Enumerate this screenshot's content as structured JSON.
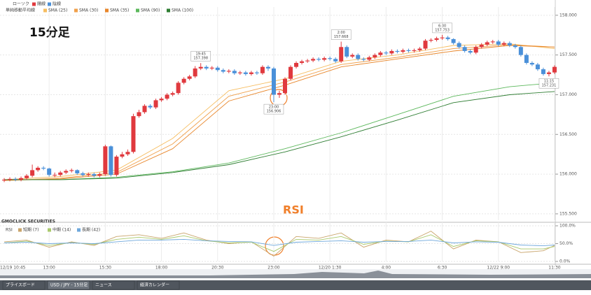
{
  "chart_data": [
    {
      "type": "candlestick",
      "title": "15分足",
      "annotation": "RSI",
      "brand": "GMOCLICK SECURITIES",
      "candle_name": "ローソク",
      "up_name": "陽線",
      "down_name": "陰線",
      "up_color": "#e0393e",
      "down_color": "#4a90d9",
      "overlay_title": "単純移動平均線",
      "open": [
        155.92,
        155.93,
        155.94,
        155.93,
        155.95,
        155.98,
        156.05,
        156.08,
        156.07,
        155.99,
        155.99,
        156.02,
        156.04,
        156.05,
        156.01,
        155.99,
        156.0,
        155.98,
        156.0,
        156.35,
        155.99,
        156.22,
        156.25,
        156.28,
        156.73,
        156.78,
        156.86,
        156.84,
        156.93,
        156.95,
        157.0,
        157.02,
        157.15,
        157.2,
        157.23,
        157.33,
        157.35,
        157.33,
        157.34,
        157.31,
        157.29,
        157.3,
        157.27,
        157.28,
        157.26,
        157.28,
        157.27,
        157.35,
        157.33,
        157.0,
        157.02,
        157.2,
        157.35,
        157.4,
        157.42,
        157.43,
        157.45,
        157.44,
        157.46,
        157.45,
        157.42,
        157.6,
        157.48,
        157.5,
        157.45,
        157.44,
        157.47,
        157.5,
        157.53,
        157.52,
        157.55,
        157.54,
        157.56,
        157.55,
        157.56,
        157.58,
        157.68,
        157.69,
        157.71,
        157.72,
        157.7,
        157.65,
        157.6,
        157.55,
        157.53,
        157.6,
        157.63,
        157.66,
        157.67,
        157.63,
        157.65,
        157.62,
        157.6,
        157.5,
        157.4,
        157.38,
        157.32,
        157.26,
        157.28
      ],
      "high": [
        155.95,
        155.96,
        155.96,
        155.97,
        156.0,
        156.12,
        156.1,
        156.1,
        156.08,
        156.02,
        156.04,
        156.06,
        156.07,
        156.06,
        156.03,
        156.02,
        156.02,
        156.02,
        156.37,
        156.36,
        156.24,
        156.28,
        156.31,
        156.76,
        156.81,
        156.88,
        156.88,
        156.95,
        156.97,
        157.02,
        157.04,
        157.17,
        157.22,
        157.25,
        157.36,
        157.398,
        157.37,
        157.36,
        157.36,
        157.33,
        157.32,
        157.32,
        157.3,
        157.3,
        157.3,
        157.3,
        157.37,
        157.37,
        157.35,
        157.05,
        157.22,
        157.37,
        157.42,
        157.44,
        157.45,
        157.47,
        157.47,
        157.48,
        157.48,
        157.47,
        157.668,
        157.62,
        157.52,
        157.52,
        157.47,
        157.49,
        157.52,
        157.55,
        157.55,
        157.57,
        157.57,
        157.58,
        157.58,
        157.58,
        157.6,
        157.7,
        157.71,
        157.73,
        157.753,
        157.74,
        157.71,
        157.67,
        157.62,
        157.57,
        157.62,
        157.65,
        157.68,
        157.69,
        157.69,
        157.67,
        157.67,
        157.64,
        157.62,
        157.52,
        157.42,
        157.4,
        157.34,
        157.3,
        157.37
      ],
      "low": [
        155.9,
        155.91,
        155.91,
        155.91,
        155.93,
        155.96,
        156.03,
        156.05,
        155.97,
        155.96,
        155.97,
        156.0,
        156.02,
        155.99,
        155.97,
        155.97,
        155.96,
        155.96,
        155.98,
        155.97,
        155.97,
        156.2,
        156.23,
        156.26,
        156.71,
        156.76,
        156.82,
        156.82,
        156.91,
        156.93,
        156.98,
        157.0,
        157.13,
        157.18,
        157.21,
        157.31,
        157.31,
        157.31,
        157.29,
        157.27,
        157.27,
        157.25,
        157.25,
        157.24,
        157.24,
        157.25,
        157.25,
        157.3,
        156.906,
        156.96,
        157.0,
        157.18,
        157.33,
        157.38,
        157.4,
        157.41,
        157.42,
        157.42,
        157.43,
        157.4,
        157.4,
        157.46,
        157.46,
        157.43,
        157.42,
        157.42,
        157.45,
        157.48,
        157.5,
        157.5,
        157.52,
        157.52,
        157.53,
        157.53,
        157.54,
        157.56,
        157.66,
        157.67,
        157.69,
        157.68,
        157.63,
        157.58,
        157.53,
        157.51,
        157.51,
        157.58,
        157.61,
        157.64,
        157.61,
        157.61,
        157.6,
        157.58,
        157.48,
        157.38,
        157.36,
        157.3,
        157.24,
        157.231,
        157.26
      ],
      "close": [
        155.93,
        155.94,
        155.93,
        155.95,
        155.98,
        156.05,
        156.08,
        156.07,
        155.99,
        155.99,
        156.02,
        156.04,
        156.05,
        156.01,
        155.99,
        156.0,
        155.98,
        156.0,
        156.35,
        155.99,
        156.22,
        156.25,
        156.28,
        156.73,
        156.78,
        156.86,
        156.84,
        156.93,
        156.95,
        157.0,
        157.02,
        157.15,
        157.2,
        157.23,
        157.33,
        157.35,
        157.33,
        157.34,
        157.31,
        157.29,
        157.3,
        157.27,
        157.28,
        157.26,
        157.28,
        157.27,
        157.35,
        157.33,
        157.0,
        157.02,
        157.2,
        157.35,
        157.4,
        157.42,
        157.43,
        157.45,
        157.44,
        157.46,
        157.45,
        157.42,
        157.6,
        157.48,
        157.5,
        157.45,
        157.44,
        157.47,
        157.5,
        157.53,
        157.52,
        157.55,
        157.54,
        157.56,
        157.55,
        157.56,
        157.58,
        157.68,
        157.69,
        157.71,
        157.72,
        157.7,
        157.65,
        157.6,
        157.55,
        157.53,
        157.6,
        157.63,
        157.66,
        157.67,
        157.63,
        157.65,
        157.62,
        157.6,
        157.5,
        157.4,
        157.38,
        157.32,
        157.26,
        157.28,
        157.35
      ],
      "series": [
        {
          "name": "SMA (25)",
          "color": "#f6bd60",
          "x": [
            0,
            10,
            20,
            30,
            40,
            50,
            60,
            70,
            80,
            90,
            98
          ],
          "values": [
            155.93,
            155.97,
            156.05,
            156.45,
            157.05,
            157.2,
            157.42,
            157.5,
            157.62,
            157.64,
            157.58
          ]
        },
        {
          "name": "SMA (30)",
          "color": "#f0a04b",
          "x": [
            0,
            10,
            20,
            30,
            40,
            50,
            60,
            70,
            80,
            90,
            98
          ],
          "values": [
            155.92,
            155.95,
            156.02,
            156.38,
            156.98,
            157.16,
            157.38,
            157.47,
            157.58,
            157.63,
            157.6
          ]
        },
        {
          "name": "SMA (35)",
          "color": "#e8862a",
          "x": [
            0,
            10,
            20,
            30,
            40,
            50,
            60,
            70,
            80,
            90,
            98
          ],
          "values": [
            155.92,
            155.94,
            156.0,
            156.32,
            156.92,
            157.12,
            157.35,
            157.45,
            157.55,
            157.62,
            157.6
          ]
        },
        {
          "name": "SMA (90)",
          "color": "#5cb85c",
          "x": [
            0,
            10,
            20,
            30,
            40,
            50,
            60,
            70,
            80,
            90,
            98
          ],
          "values": [
            155.93,
            155.93,
            155.96,
            156.03,
            156.14,
            156.32,
            156.52,
            156.75,
            156.98,
            157.1,
            157.15
          ]
        },
        {
          "name": "SMA (100)",
          "color": "#2e7d32",
          "x": [
            0,
            10,
            20,
            30,
            40,
            50,
            60,
            70,
            80,
            90,
            98
          ],
          "values": [
            155.93,
            155.93,
            155.95,
            156.02,
            156.12,
            156.28,
            156.47,
            156.68,
            156.9,
            157.0,
            157.04
          ]
        }
      ],
      "annotations": [
        {
          "x": 35,
          "time": "19:45",
          "value": 157.398,
          "label": "157.398",
          "side": "above"
        },
        {
          "x": 48,
          "time": "23:00",
          "value": 156.906,
          "label": "156.906",
          "side": "below"
        },
        {
          "x": 60,
          "time": "2:00",
          "value": 157.668,
          "label": "157.668",
          "side": "above"
        },
        {
          "x": 78,
          "time": "6:30",
          "value": 157.753,
          "label": "157.753",
          "side": "above"
        },
        {
          "x": 97,
          "time": "11:15",
          "value": 157.231,
          "label": "157.231",
          "side": "below"
        }
      ],
      "ylim": [
        155.42,
        158.06
      ],
      "yticks": [
        {
          "value": 155.5,
          "label": "155.500"
        },
        {
          "value": 156,
          "label": "156.000"
        },
        {
          "value": 156.5,
          "label": "156.500"
        },
        {
          "value": 157,
          "label": "157.000"
        },
        {
          "value": 157.5,
          "label": "157.500"
        },
        {
          "value": 158,
          "label": "158.000"
        }
      ],
      "xticks": [
        {
          "value": -1,
          "label": "12/19 10:45"
        },
        {
          "value": 8,
          "label": "13:00"
        },
        {
          "value": 18,
          "label": "15:30"
        },
        {
          "value": 28,
          "label": "18:00"
        },
        {
          "value": 38,
          "label": "20:30"
        },
        {
          "value": 48,
          "label": "23:00"
        },
        {
          "value": 58,
          "label": "12/20 1:30"
        },
        {
          "value": 68,
          "label": "4:00"
        },
        {
          "value": 78,
          "label": "6:30"
        },
        {
          "value": 88,
          "label": "12/22 9:00"
        },
        {
          "value": 98,
          "label": "11:30"
        }
      ],
      "grid": true
    },
    {
      "type": "line",
      "title": "RSI",
      "series": [
        {
          "name": "短期 (7)",
          "color": "#c9a46a",
          "x": [
            0,
            4,
            8,
            12,
            16,
            20,
            24,
            28,
            32,
            36,
            40,
            44,
            48,
            52,
            56,
            60,
            64,
            68,
            72,
            76,
            80,
            84,
            88,
            92,
            96,
            98
          ],
          "values": [
            55,
            60,
            40,
            55,
            45,
            70,
            75,
            65,
            80,
            60,
            50,
            55,
            15,
            70,
            65,
            80,
            40,
            60,
            55,
            85,
            35,
            60,
            55,
            25,
            30,
            45
          ]
        },
        {
          "name": "中期 (14)",
          "color": "#a9c96b",
          "x": [
            0,
            4,
            8,
            12,
            16,
            20,
            24,
            28,
            32,
            36,
            40,
            44,
            48,
            52,
            56,
            60,
            64,
            68,
            72,
            76,
            80,
            84,
            88,
            92,
            96,
            98
          ],
          "values": [
            52,
            57,
            45,
            53,
            48,
            62,
            68,
            62,
            72,
            58,
            52,
            54,
            28,
            62,
            60,
            70,
            48,
            57,
            55,
            75,
            42,
            58,
            55,
            35,
            35,
            42
          ]
        },
        {
          "name": "長期 (42)",
          "color": "#6fa8dc",
          "x": [
            0,
            4,
            8,
            12,
            16,
            20,
            24,
            28,
            32,
            36,
            40,
            44,
            48,
            52,
            56,
            60,
            64,
            68,
            72,
            76,
            80,
            84,
            88,
            92,
            96,
            98
          ],
          "values": [
            52,
            54,
            50,
            52,
            50,
            55,
            60,
            60,
            62,
            58,
            56,
            55,
            45,
            54,
            56,
            58,
            54,
            56,
            56,
            60,
            52,
            55,
            54,
            46,
            44,
            46
          ]
        }
      ],
      "ylim": [
        0,
        100
      ],
      "yticks": [
        {
          "value": 0,
          "label": "0.0%"
        },
        {
          "value": 50,
          "label": "50.0%"
        },
        {
          "value": 100,
          "label": "100.0%"
        }
      ]
    }
  ],
  "tabs": [
    "プライスボード",
    "USD / JPY - 15分足",
    "ニュース",
    "経済カレンダー"
  ]
}
